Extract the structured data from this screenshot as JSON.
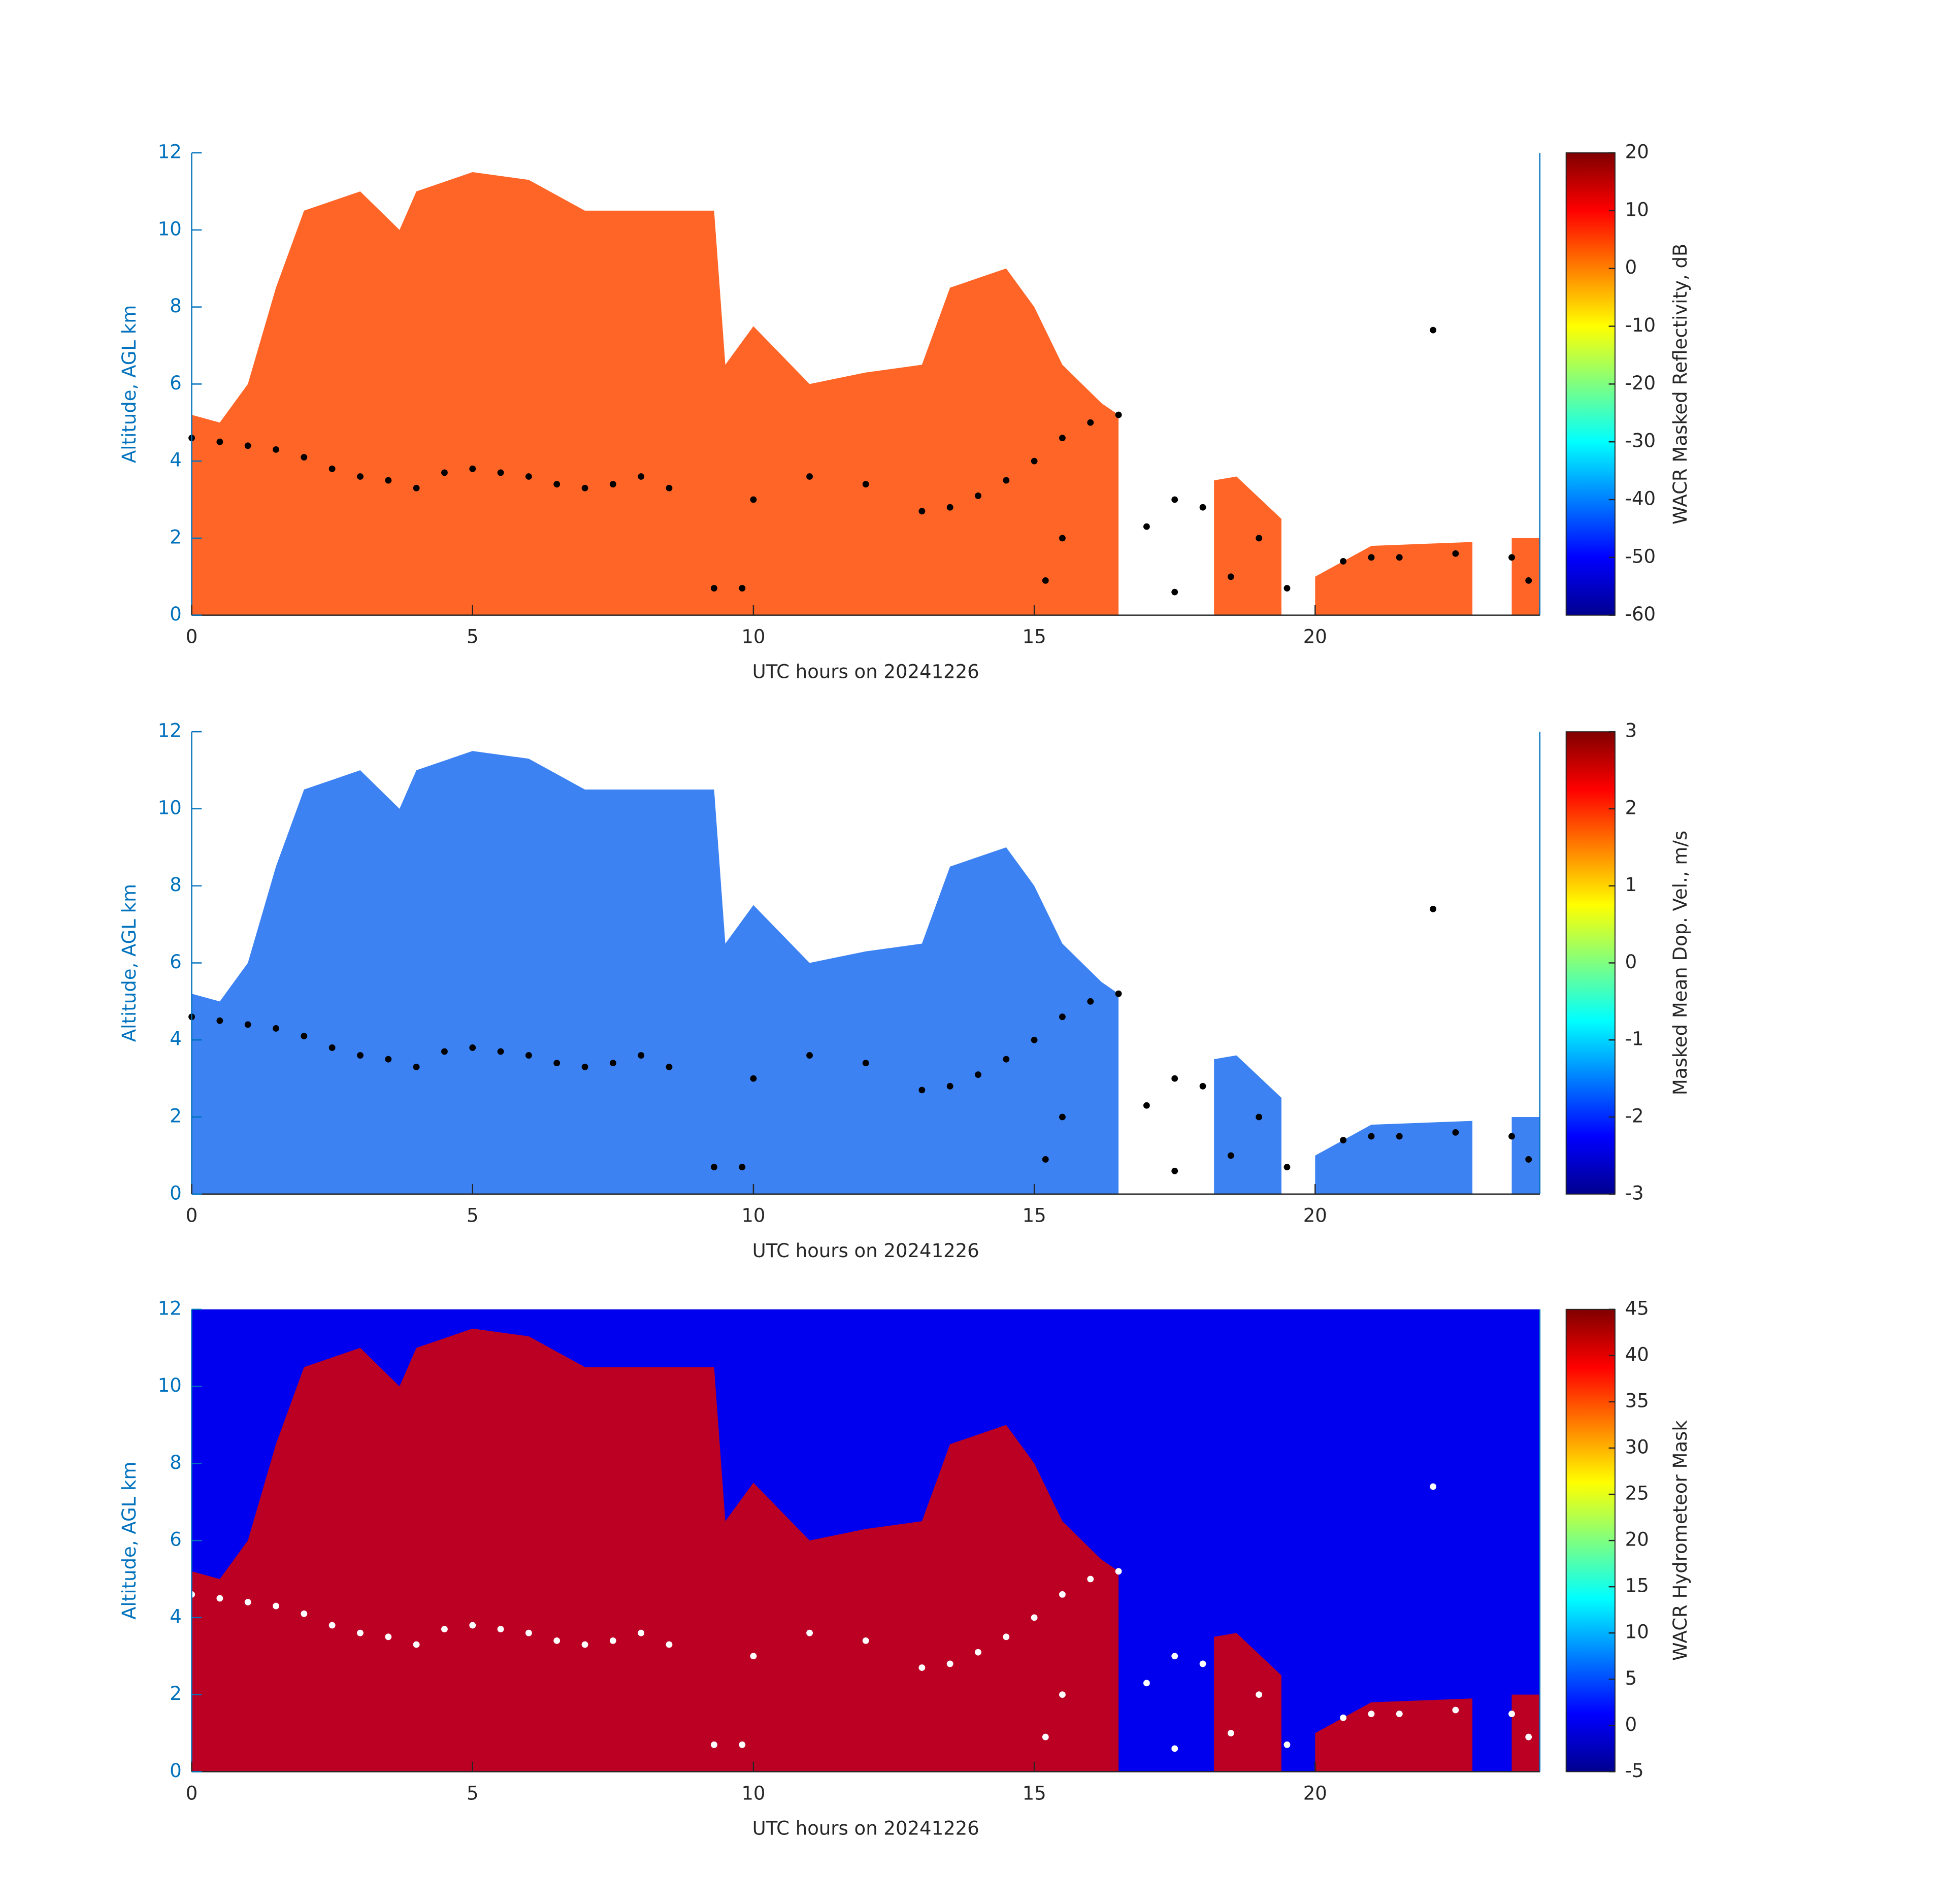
{
  "chart_data": [
    {
      "type": "radar",
      "xlabel": "UTC hours on 20241226",
      "ylabel": "Altitude, AGL km",
      "xlim": [
        0,
        24
      ],
      "xticks": [
        0,
        5,
        10,
        15,
        20
      ],
      "ylim": [
        0,
        12
      ],
      "yticks": [
        0,
        2,
        4,
        6,
        8,
        10,
        12
      ],
      "echo_color": "#ff4a00",
      "background_color": null,
      "point_color": "#000000",
      "echo_top": {
        "x": [
          0,
          0.5,
          1,
          1.5,
          2,
          3,
          3.7,
          4,
          5,
          6,
          7,
          8,
          9.3,
          9.5,
          10,
          11,
          12,
          13,
          13.5,
          14.5,
          15,
          15.5,
          16.2,
          16.5,
          null,
          18.2,
          18.6,
          19.4,
          null,
          20,
          21,
          22.8,
          null,
          23.5,
          24
        ],
        "values": [
          5.2,
          5,
          6,
          8.5,
          10.5,
          11,
          10,
          11,
          11.5,
          11.3,
          10.5,
          10.5,
          10.5,
          6.5,
          7.5,
          6,
          6.3,
          6.5,
          8.5,
          9,
          8,
          6.5,
          5.5,
          5.2,
          null,
          3.5,
          3.6,
          2.5,
          null,
          1,
          1.8,
          1.9,
          null,
          2,
          2
        ]
      },
      "cloud_base": {
        "x": [
          0,
          0.5,
          1,
          1.5,
          2,
          2.5,
          3,
          3.5,
          4,
          4.5,
          5,
          5.5,
          6,
          6.5,
          7,
          7.5,
          8,
          8.5,
          9.3,
          9.8,
          10,
          11,
          12,
          13,
          13.5,
          14,
          14.5,
          15,
          15.5,
          16,
          16.5,
          15.2,
          15.5,
          17,
          17.5,
          18,
          17.5,
          18.5,
          19,
          19.5,
          20.5,
          21,
          21.5,
          22.5,
          23.5,
          23.8,
          22.1
        ],
        "y": [
          4.6,
          4.5,
          4.4,
          4.3,
          4.1,
          3.8,
          3.6,
          3.5,
          3.3,
          3.7,
          3.8,
          3.7,
          3.6,
          3.4,
          3.3,
          3.4,
          3.6,
          3.3,
          0.7,
          0.7,
          3,
          3.6,
          3.4,
          2.7,
          2.8,
          3.1,
          3.5,
          4,
          4.6,
          5,
          5.2,
          0.9,
          2,
          2.3,
          3,
          2.8,
          0.6,
          1,
          2,
          0.7,
          1.4,
          1.5,
          1.5,
          1.6,
          1.5,
          0.9,
          7.4
        ]
      },
      "colorbar": {
        "label": "WACR Masked Reflectivity, dB",
        "clim": [
          -60,
          20
        ],
        "ticks": [
          -60,
          -50,
          -40,
          -30,
          -20,
          -10,
          0,
          10,
          20
        ]
      }
    },
    {
      "type": "radar",
      "xlabel": "UTC hours on 20241226",
      "ylabel": "Altitude, AGL km",
      "xlim": [
        0,
        24
      ],
      "xticks": [
        0,
        5,
        10,
        15,
        20
      ],
      "ylim": [
        0,
        12
      ],
      "yticks": [
        0,
        2,
        4,
        6,
        8,
        10,
        12
      ],
      "echo_color": "#1a6cf0",
      "background_color": null,
      "point_color": "#000000",
      "echo_top": {
        "x": [
          0,
          0.5,
          1,
          1.5,
          2,
          3,
          3.7,
          4,
          5,
          6,
          7,
          8,
          9.3,
          9.5,
          10,
          11,
          12,
          13,
          13.5,
          14.5,
          15,
          15.5,
          16.2,
          16.5,
          null,
          18.2,
          18.6,
          19.4,
          null,
          20,
          21,
          22.8,
          null,
          23.5,
          24
        ],
        "values": [
          5.2,
          5,
          6,
          8.5,
          10.5,
          11,
          10,
          11,
          11.5,
          11.3,
          10.5,
          10.5,
          10.5,
          6.5,
          7.5,
          6,
          6.3,
          6.5,
          8.5,
          9,
          8,
          6.5,
          5.5,
          5.2,
          null,
          3.5,
          3.6,
          2.5,
          null,
          1,
          1.8,
          1.9,
          null,
          2,
          2
        ]
      },
      "cloud_base": {
        "x": [
          0,
          0.5,
          1,
          1.5,
          2,
          2.5,
          3,
          3.5,
          4,
          4.5,
          5,
          5.5,
          6,
          6.5,
          7,
          7.5,
          8,
          8.5,
          9.3,
          9.8,
          10,
          11,
          12,
          13,
          13.5,
          14,
          14.5,
          15,
          15.5,
          16,
          16.5,
          15.2,
          15.5,
          17,
          17.5,
          18,
          17.5,
          18.5,
          19,
          19.5,
          20.5,
          21,
          21.5,
          22.5,
          23.5,
          23.8,
          22.1
        ],
        "y": [
          4.6,
          4.5,
          4.4,
          4.3,
          4.1,
          3.8,
          3.6,
          3.5,
          3.3,
          3.7,
          3.8,
          3.7,
          3.6,
          3.4,
          3.3,
          3.4,
          3.6,
          3.3,
          0.7,
          0.7,
          3,
          3.6,
          3.4,
          2.7,
          2.8,
          3.1,
          3.5,
          4,
          4.6,
          5,
          5.2,
          0.9,
          2,
          2.3,
          3,
          2.8,
          0.6,
          1,
          2,
          0.7,
          1.4,
          1.5,
          1.5,
          1.6,
          1.5,
          0.9,
          7.4
        ]
      },
      "colorbar": {
        "label": "Masked Mean Dop. Vel., m/s",
        "clim": [
          -3,
          3
        ],
        "ticks": [
          -3,
          -2,
          -1,
          0,
          1,
          2,
          3
        ]
      }
    },
    {
      "type": "radar",
      "xlabel": "UTC hours on 20241226",
      "ylabel": "Altitude, AGL km",
      "xlim": [
        0,
        24
      ],
      "xticks": [
        0,
        5,
        10,
        15,
        20
      ],
      "ylim": [
        0,
        12
      ],
      "yticks": [
        0,
        2,
        4,
        6,
        8,
        10,
        12
      ],
      "echo_color": "#dd0000",
      "background_color": "#0000ee",
      "point_color": "#ffffff",
      "echo_top": {
        "x": [
          0,
          0.5,
          1,
          1.5,
          2,
          3,
          3.7,
          4,
          5,
          6,
          7,
          8,
          9.3,
          9.5,
          10,
          11,
          12,
          13,
          13.5,
          14.5,
          15,
          15.5,
          16.2,
          16.5,
          null,
          18.2,
          18.6,
          19.4,
          null,
          20,
          21,
          22.8,
          null,
          23.5,
          24
        ],
        "values": [
          5.2,
          5,
          6,
          8.5,
          10.5,
          11,
          10,
          11,
          11.5,
          11.3,
          10.5,
          10.5,
          10.5,
          6.5,
          7.5,
          6,
          6.3,
          6.5,
          8.5,
          9,
          8,
          6.5,
          5.5,
          5.2,
          null,
          3.5,
          3.6,
          2.5,
          null,
          1,
          1.8,
          1.9,
          null,
          2,
          2
        ]
      },
      "cloud_base": {
        "x": [
          0,
          0.5,
          1,
          1.5,
          2,
          2.5,
          3,
          3.5,
          4,
          4.5,
          5,
          5.5,
          6,
          6.5,
          7,
          7.5,
          8,
          8.5,
          9.3,
          9.8,
          10,
          11,
          12,
          13,
          13.5,
          14,
          14.5,
          15,
          15.5,
          16,
          16.5,
          15.2,
          15.5,
          17,
          17.5,
          18,
          17.5,
          18.5,
          19,
          19.5,
          20.5,
          21,
          21.5,
          22.5,
          23.5,
          23.8,
          22.1
        ],
        "y": [
          4.6,
          4.5,
          4.4,
          4.3,
          4.1,
          3.8,
          3.6,
          3.5,
          3.3,
          3.7,
          3.8,
          3.7,
          3.6,
          3.4,
          3.3,
          3.4,
          3.6,
          3.3,
          0.7,
          0.7,
          3,
          3.6,
          3.4,
          2.7,
          2.8,
          3.1,
          3.5,
          4,
          4.6,
          5,
          5.2,
          0.9,
          2,
          2.3,
          3,
          2.8,
          0.6,
          1,
          2,
          0.7,
          1.4,
          1.5,
          1.5,
          1.6,
          1.5,
          0.9,
          7.4
        ]
      },
      "colorbar": {
        "label": "WACR Hydrometeor Mask",
        "clim": [
          -5,
          45
        ],
        "ticks": [
          -5,
          0,
          5,
          10,
          15,
          20,
          25,
          30,
          35,
          40,
          45
        ]
      }
    }
  ]
}
